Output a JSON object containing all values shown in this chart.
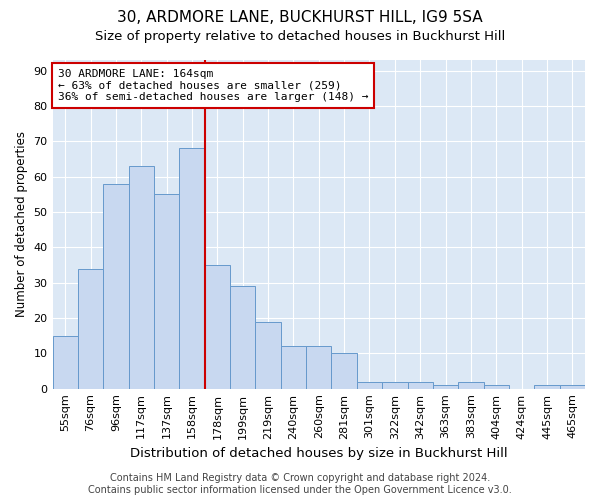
{
  "title": "30, ARDMORE LANE, BUCKHURST HILL, IG9 5SA",
  "subtitle": "Size of property relative to detached houses in Buckhurst Hill",
  "xlabel": "Distribution of detached houses by size in Buckhurst Hill",
  "ylabel": "Number of detached properties",
  "categories": [
    "55sqm",
    "76sqm",
    "96sqm",
    "117sqm",
    "137sqm",
    "158sqm",
    "178sqm",
    "199sqm",
    "219sqm",
    "240sqm",
    "260sqm",
    "281sqm",
    "301sqm",
    "322sqm",
    "342sqm",
    "363sqm",
    "383sqm",
    "404sqm",
    "424sqm",
    "445sqm",
    "465sqm"
  ],
  "values": [
    15,
    34,
    58,
    63,
    55,
    68,
    35,
    29,
    19,
    12,
    12,
    10,
    2,
    2,
    2,
    1,
    2,
    1,
    0,
    1,
    1
  ],
  "bar_color": "#c8d8f0",
  "bar_edge_color": "#6699cc",
  "vline_color": "#cc0000",
  "vline_index": 5,
  "annotation_text": "30 ARDMORE LANE: 164sqm\n← 63% of detached houses are smaller (259)\n36% of semi-detached houses are larger (148) →",
  "annotation_box_facecolor": "#ffffff",
  "annotation_box_edgecolor": "#cc0000",
  "ylim": [
    0,
    93
  ],
  "yticks": [
    0,
    10,
    20,
    30,
    40,
    50,
    60,
    70,
    80,
    90
  ],
  "figure_bg": "#ffffff",
  "plot_bg": "#dce8f5",
  "grid_color": "#ffffff",
  "title_fontsize": 11,
  "subtitle_fontsize": 9.5,
  "xlabel_fontsize": 9.5,
  "ylabel_fontsize": 8.5,
  "tick_fontsize": 8,
  "annotation_fontsize": 8,
  "footer_fontsize": 7,
  "footer_text": "Contains HM Land Registry data © Crown copyright and database right 2024.\nContains public sector information licensed under the Open Government Licence v3.0."
}
